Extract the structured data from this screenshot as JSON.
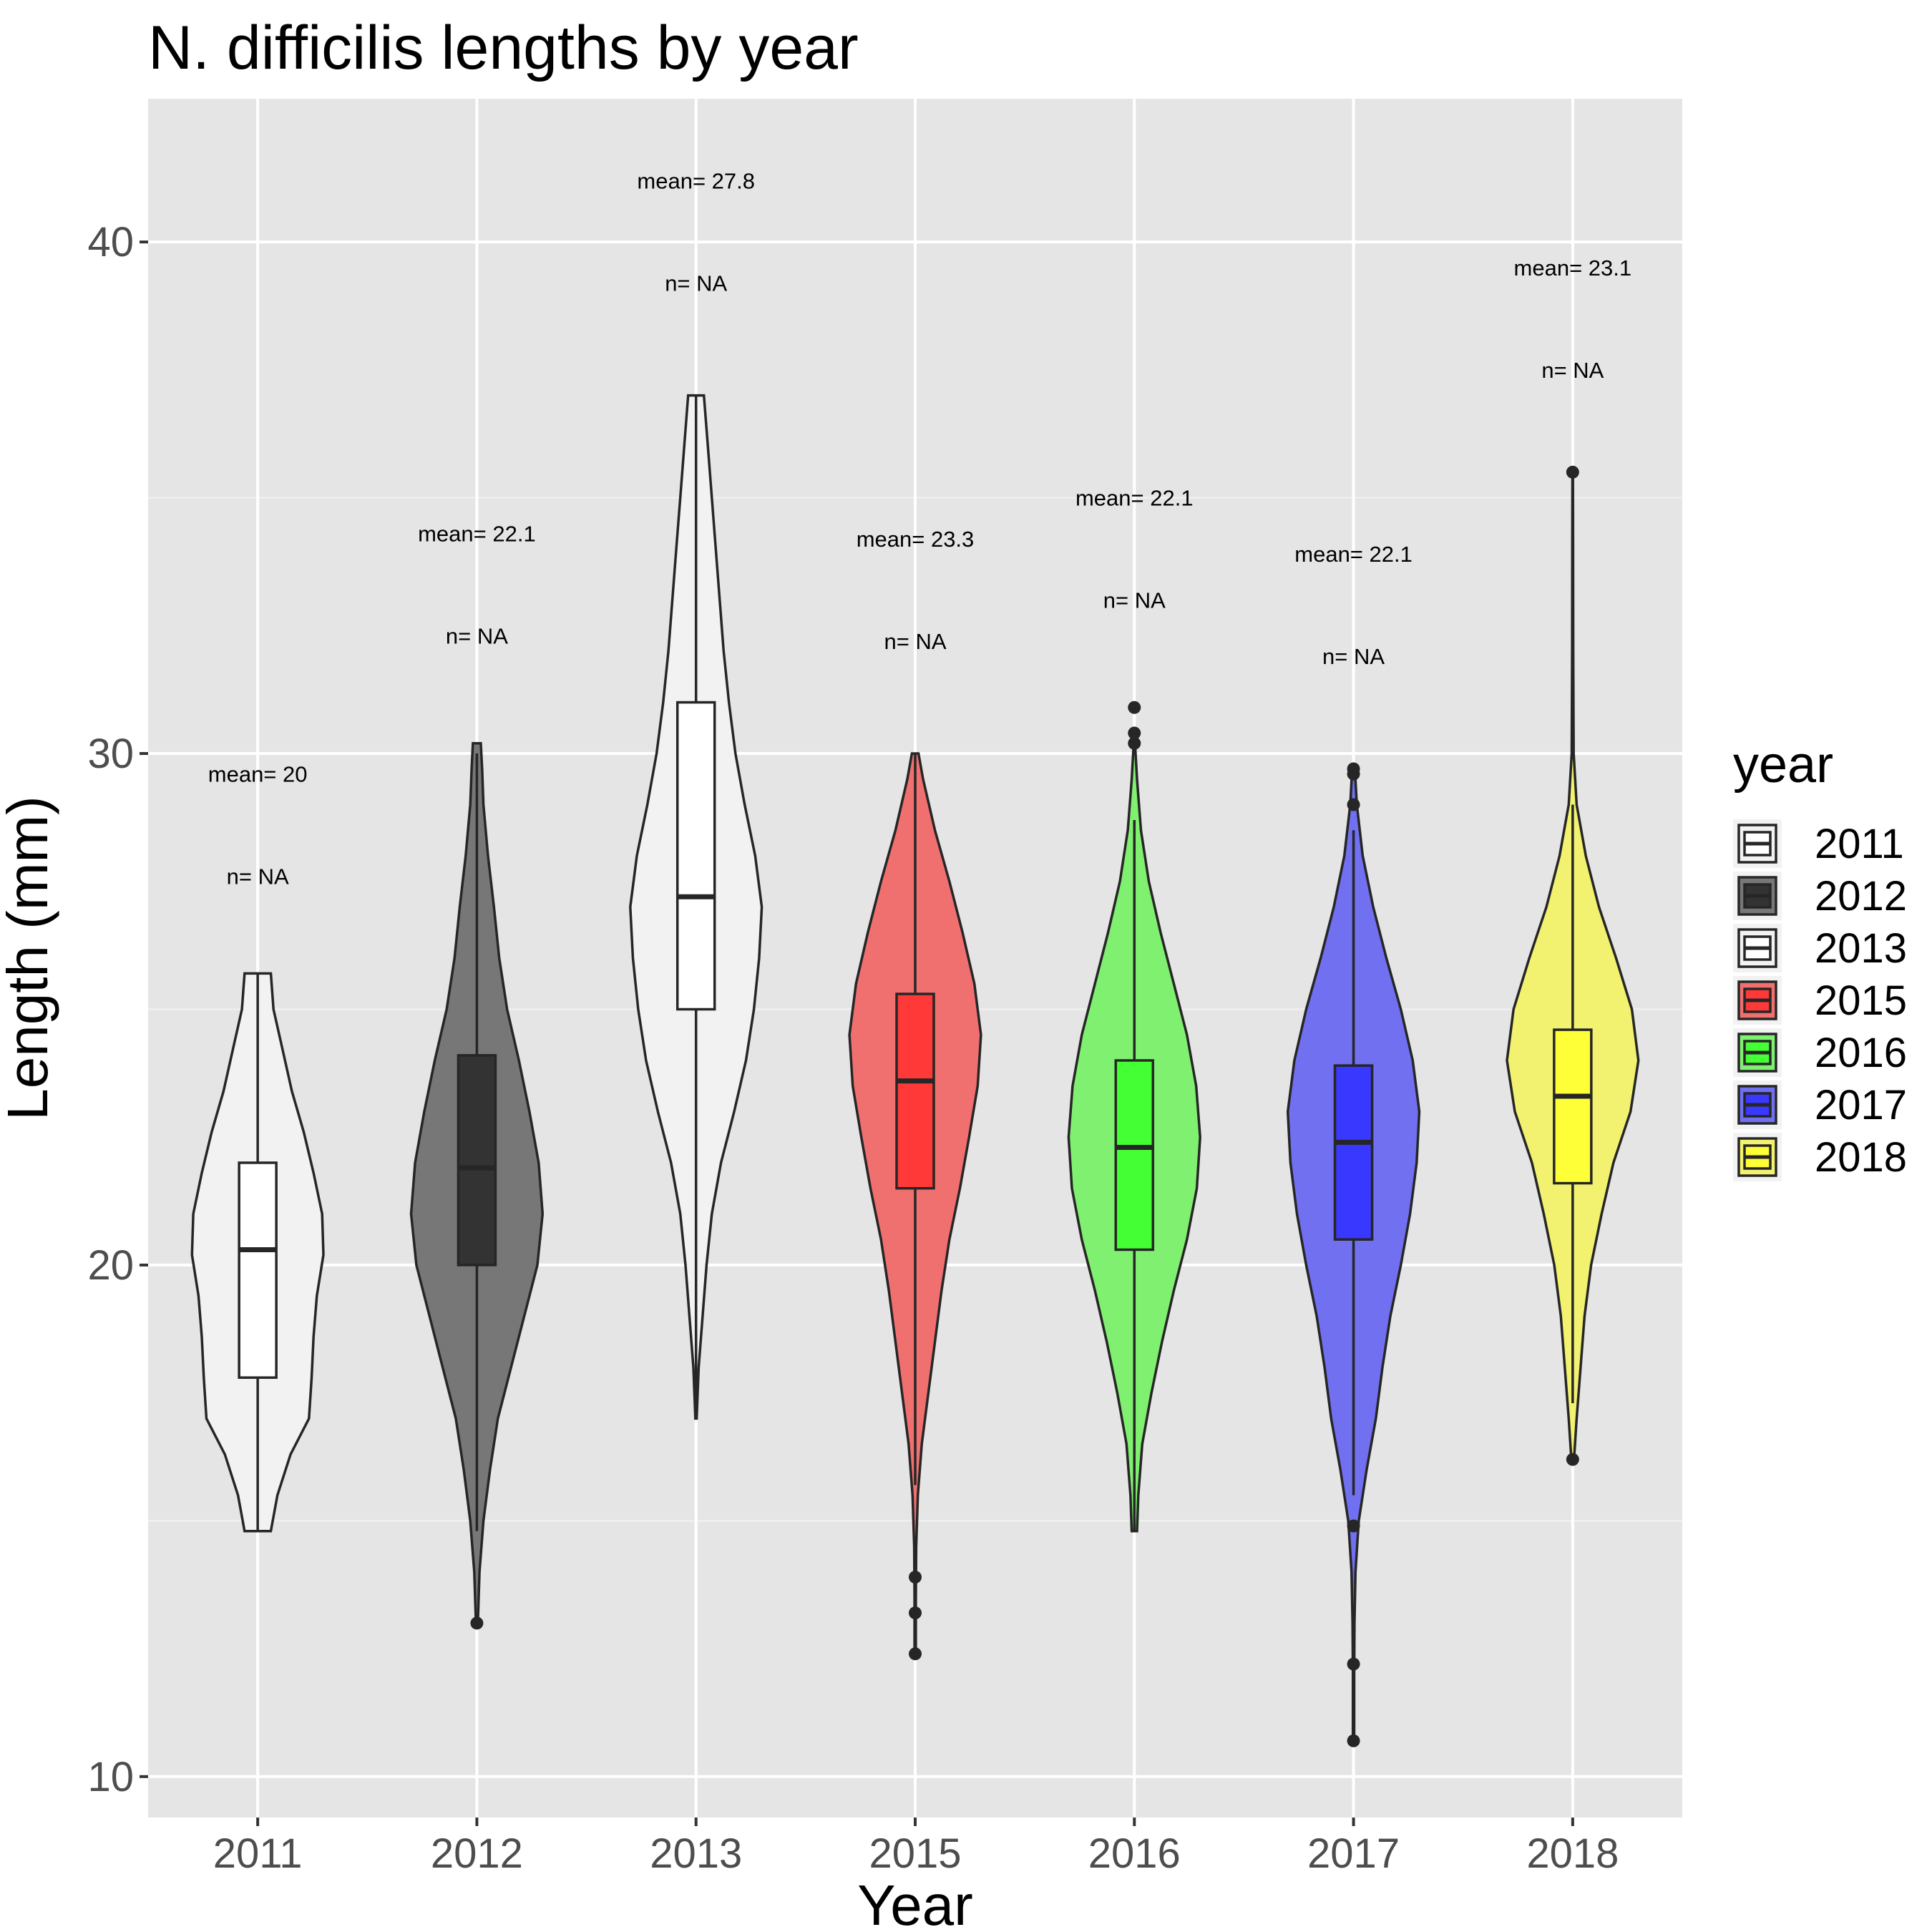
{
  "chart_data": {
    "type": "violin",
    "title": "N. difficilis lengths by year",
    "xlabel": "Year",
    "ylabel": "Length (mm)",
    "ylim": [
      9.2,
      42.8
    ],
    "y_ticks": [
      10,
      20,
      30,
      40
    ],
    "grid": true,
    "legend": {
      "title": "year",
      "position": "right"
    },
    "categories": [
      "2011",
      "2012",
      "2013",
      "2015",
      "2016",
      "2017",
      "2018"
    ],
    "series": [
      {
        "name": "2011",
        "color": "#f2f2f2",
        "box_color": "#ffffff",
        "min": 14.8,
        "max": 25.7,
        "whisker_low": 14.8,
        "whisker_high": 25.7,
        "q1": 17.8,
        "median": 20.3,
        "q3": 22.0,
        "outliers": [],
        "mean_label": "mean= 20",
        "mean_y": 29.6,
        "n_label": "n= NA",
        "n_y": 27.6,
        "density": [
          [
            14.8,
            0.2
          ],
          [
            15.5,
            0.3
          ],
          [
            16.3,
            0.5
          ],
          [
            17.0,
            0.78
          ],
          [
            17.8,
            0.82
          ],
          [
            18.6,
            0.85
          ],
          [
            19.4,
            0.9
          ],
          [
            20.2,
            1.0
          ],
          [
            21.0,
            0.98
          ],
          [
            21.8,
            0.85
          ],
          [
            22.6,
            0.7
          ],
          [
            23.4,
            0.52
          ],
          [
            24.2,
            0.38
          ],
          [
            25.0,
            0.24
          ],
          [
            25.7,
            0.2
          ]
        ]
      },
      {
        "name": "2012",
        "color": "#777777",
        "box_color": "#333333",
        "min": 13.0,
        "max": 30.2,
        "whisker_low": 14.8,
        "whisker_high": 30.0,
        "q1": 20.0,
        "median": 21.9,
        "q3": 24.1,
        "outliers": [
          13.0
        ],
        "mean_label": "mean= 22.1",
        "mean_y": 34.3,
        "n_label": "n= NA",
        "n_y": 32.3,
        "density": [
          [
            13.0,
            0.015
          ],
          [
            14.0,
            0.04
          ],
          [
            15.0,
            0.1
          ],
          [
            16.0,
            0.2
          ],
          [
            17.0,
            0.32
          ],
          [
            18.0,
            0.52
          ],
          [
            19.0,
            0.72
          ],
          [
            20.0,
            0.92
          ],
          [
            21.0,
            1.0
          ],
          [
            22.0,
            0.94
          ],
          [
            23.0,
            0.8
          ],
          [
            24.0,
            0.64
          ],
          [
            25.0,
            0.46
          ],
          [
            26.0,
            0.34
          ],
          [
            27.0,
            0.26
          ],
          [
            28.0,
            0.17
          ],
          [
            29.0,
            0.1
          ],
          [
            29.7,
            0.08
          ],
          [
            30.2,
            0.06
          ]
        ]
      },
      {
        "name": "2013",
        "color": "#f2f2f2",
        "box_color": "#ffffff",
        "min": 17.0,
        "max": 37.0,
        "whisker_low": 17.0,
        "whisker_high": 37.0,
        "q1": 25.0,
        "median": 27.2,
        "q3": 31.0,
        "outliers": [],
        "mean_label": "mean= 27.8",
        "mean_y": 41.2,
        "n_label": "n= NA",
        "n_y": 39.2,
        "density": [
          [
            17.0,
            0.01
          ],
          [
            18.0,
            0.04
          ],
          [
            19.0,
            0.1
          ],
          [
            20.0,
            0.16
          ],
          [
            21.0,
            0.24
          ],
          [
            22.0,
            0.38
          ],
          [
            23.0,
            0.58
          ],
          [
            24.0,
            0.76
          ],
          [
            25.0,
            0.88
          ],
          [
            26.0,
            0.96
          ],
          [
            27.0,
            1.0
          ],
          [
            28.0,
            0.9
          ],
          [
            29.0,
            0.74
          ],
          [
            30.0,
            0.6
          ],
          [
            31.0,
            0.5
          ],
          [
            32.0,
            0.42
          ],
          [
            33.0,
            0.36
          ],
          [
            34.0,
            0.3
          ],
          [
            35.0,
            0.24
          ],
          [
            36.0,
            0.18
          ],
          [
            37.0,
            0.12
          ]
        ]
      },
      {
        "name": "2015",
        "color": "#f07070",
        "box_color": "#ff3838",
        "min": 12.4,
        "max": 30.0,
        "whisker_low": 15.7,
        "whisker_high": 30.0,
        "q1": 21.5,
        "median": 23.6,
        "q3": 25.3,
        "outliers": [
          12.4,
          13.2,
          13.9
        ],
        "mean_label": "mean= 23.3",
        "mean_y": 34.2,
        "n_label": "n= NA",
        "n_y": 32.2,
        "density": [
          [
            12.4,
            0.01
          ],
          [
            13.5,
            0.01
          ],
          [
            14.5,
            0.015
          ],
          [
            15.5,
            0.04
          ],
          [
            16.5,
            0.1
          ],
          [
            17.5,
            0.2
          ],
          [
            18.5,
            0.3
          ],
          [
            19.5,
            0.4
          ],
          [
            20.5,
            0.52
          ],
          [
            21.5,
            0.68
          ],
          [
            22.5,
            0.82
          ],
          [
            23.5,
            0.95
          ],
          [
            24.5,
            1.0
          ],
          [
            25.5,
            0.9
          ],
          [
            26.5,
            0.72
          ],
          [
            27.5,
            0.52
          ],
          [
            28.5,
            0.3
          ],
          [
            29.5,
            0.12
          ],
          [
            30.0,
            0.05
          ]
        ]
      },
      {
        "name": "2016",
        "color": "#80f070",
        "box_color": "#44ff33",
        "min": 14.8,
        "max": 30.9,
        "whisker_low": 14.8,
        "whisker_high": 28.7,
        "q1": 20.3,
        "median": 22.3,
        "q3": 24.0,
        "outliers": [
          30.2,
          30.4,
          30.9
        ],
        "mean_label": "mean= 22.1",
        "mean_y": 35.0,
        "n_label": "n= NA",
        "n_y": 33.0,
        "density": [
          [
            14.8,
            0.04
          ],
          [
            15.5,
            0.06
          ],
          [
            16.5,
            0.12
          ],
          [
            17.5,
            0.26
          ],
          [
            18.5,
            0.42
          ],
          [
            19.5,
            0.6
          ],
          [
            20.5,
            0.8
          ],
          [
            21.5,
            0.95
          ],
          [
            22.5,
            1.0
          ],
          [
            23.5,
            0.94
          ],
          [
            24.5,
            0.8
          ],
          [
            25.5,
            0.6
          ],
          [
            26.5,
            0.4
          ],
          [
            27.5,
            0.22
          ],
          [
            28.5,
            0.1
          ],
          [
            29.5,
            0.04
          ],
          [
            30.2,
            0.01
          ]
        ]
      },
      {
        "name": "2017",
        "color": "#7070f0",
        "box_color": "#3838ff",
        "min": 10.7,
        "max": 29.7,
        "whisker_low": 15.5,
        "whisker_high": 28.5,
        "q1": 20.5,
        "median": 22.4,
        "q3": 23.9,
        "outliers": [
          10.7,
          12.2,
          14.9,
          29.0,
          29.6,
          29.7
        ],
        "mean_label": "mean= 22.1",
        "mean_y": 33.9,
        "n_label": "n= NA",
        "n_y": 31.9,
        "density": [
          [
            10.7,
            0.01
          ],
          [
            12.0,
            0.01
          ],
          [
            13.0,
            0.015
          ],
          [
            14.0,
            0.03
          ],
          [
            15.0,
            0.08
          ],
          [
            16.0,
            0.2
          ],
          [
            17.0,
            0.34
          ],
          [
            18.0,
            0.44
          ],
          [
            19.0,
            0.56
          ],
          [
            20.0,
            0.72
          ],
          [
            21.0,
            0.86
          ],
          [
            22.0,
            0.96
          ],
          [
            23.0,
            1.0
          ],
          [
            24.0,
            0.9
          ],
          [
            25.0,
            0.72
          ],
          [
            26.0,
            0.5
          ],
          [
            27.0,
            0.3
          ],
          [
            28.0,
            0.14
          ],
          [
            29.0,
            0.05
          ],
          [
            29.7,
            0.02
          ]
        ]
      },
      {
        "name": "2018",
        "color": "#f2f270",
        "box_color": "#ffff38",
        "min": 16.2,
        "max": 35.5,
        "whisker_low": 17.3,
        "whisker_high": 29.0,
        "q1": 21.6,
        "median": 23.3,
        "q3": 24.6,
        "outliers": [
          16.2,
          35.5
        ],
        "mean_label": "mean= 23.1",
        "mean_y": 39.5,
        "n_label": "n= NA",
        "n_y": 37.5,
        "density": [
          [
            16.2,
            0.02
          ],
          [
            17.0,
            0.06
          ],
          [
            18.0,
            0.12
          ],
          [
            19.0,
            0.18
          ],
          [
            20.0,
            0.28
          ],
          [
            21.0,
            0.44
          ],
          [
            22.0,
            0.62
          ],
          [
            23.0,
            0.88
          ],
          [
            24.0,
            1.0
          ],
          [
            25.0,
            0.9
          ],
          [
            26.0,
            0.66
          ],
          [
            27.0,
            0.4
          ],
          [
            28.0,
            0.2
          ],
          [
            29.0,
            0.06
          ],
          [
            30.0,
            0.015
          ],
          [
            32.0,
            0.008
          ],
          [
            34.0,
            0.006
          ],
          [
            35.5,
            0.004
          ]
        ]
      }
    ]
  }
}
